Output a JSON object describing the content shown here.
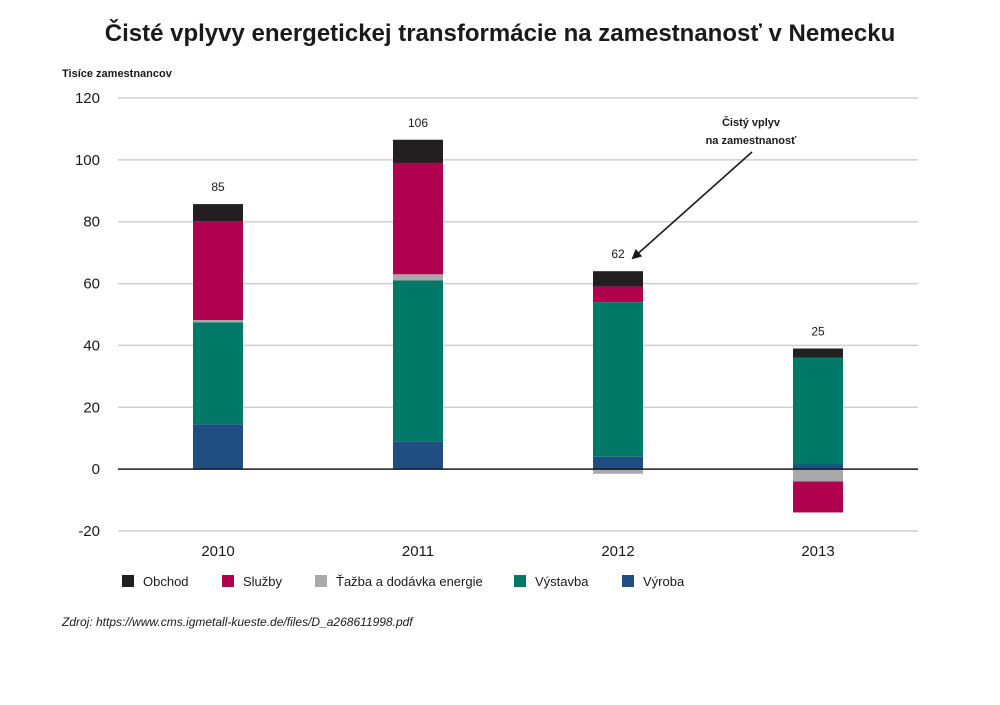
{
  "chart_data": {
    "type": "bar",
    "stacked": true,
    "title": "Čisté vplyvy energetickej transformácie na zamestnanosť v Nemecku",
    "ylabel": "Tisíce zamestnancov",
    "xlabel": "",
    "ylim": [
      -20,
      120
    ],
    "yticks": [
      -20,
      0,
      20,
      40,
      60,
      80,
      100,
      120
    ],
    "categories": [
      "2010",
      "2011",
      "2012",
      "2013"
    ],
    "grid": true,
    "legend_position": "bottom",
    "series": [
      {
        "name": "Výroba",
        "color": "#1f4e82",
        "values": [
          14.5,
          9,
          4,
          1.5
        ]
      },
      {
        "name": "Ťažba a dodávka energie",
        "color": "#a9a9ab",
        "values": [
          0,
          0,
          -1.5,
          -4
        ]
      },
      {
        "name": "Výstavba",
        "color": "#007868",
        "values": [
          33,
          52,
          50,
          34.5
        ]
      },
      {
        "name": "Služby",
        "color": "#b0004e",
        "values": [
          32,
          36,
          5,
          -10
        ]
      },
      {
        "name": "Obchod",
        "color": "#231f20",
        "values": [
          5.5,
          7.5,
          5,
          3
        ]
      }
    ],
    "gray_positive_cap": [
      0.7,
      2,
      0,
      0
    ],
    "totals": [
      85,
      106,
      62,
      25
    ],
    "annotation": {
      "line1": "Čistý vplyv",
      "line2": "na zamestnanosť",
      "target_category": "2012"
    },
    "legend_order": [
      "Obchod",
      "Služby",
      "Ťažba a dodávka energie",
      "Výstavba",
      "Výroba"
    ]
  },
  "source": "Zdroj: https://www.cms.igmetall-kueste.de/files/D_a268611998.pdf"
}
